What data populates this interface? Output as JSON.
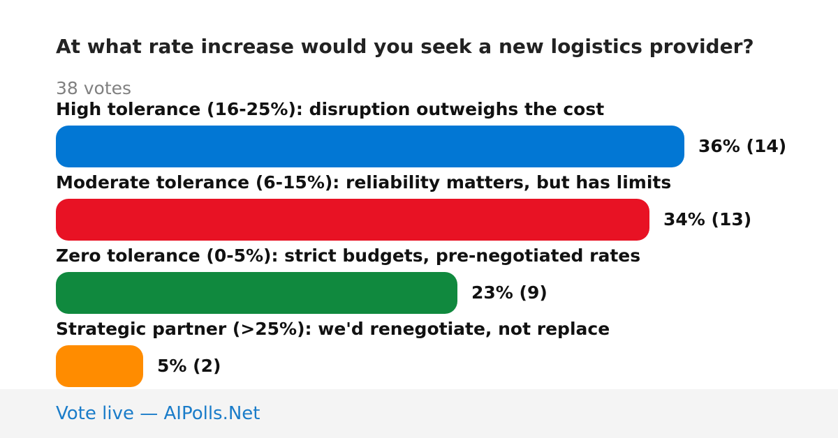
{
  "poll": {
    "question": "At what rate increase would you seek a new logistics provider?",
    "votes_label": "38 votes"
  },
  "chart_data": {
    "type": "bar",
    "orientation": "horizontal",
    "title": "At what rate increase would you seek a new logistics provider?",
    "total_votes": 38,
    "categories": [
      "High tolerance (16-25%): disruption outweighs the cost",
      "Moderate tolerance (6-15%): reliability matters, but has limits",
      "Zero tolerance (0-5%): strict budgets, pre-negotiated rates",
      "Strategic partner (>25%): we'd renegotiate, not replace"
    ],
    "values": [
      36,
      34,
      23,
      5
    ],
    "counts": [
      14,
      13,
      9,
      2
    ],
    "value_labels": [
      "36% (14)",
      "34% (13)",
      "23% (9)",
      "5% (2)"
    ],
    "colors": [
      "#0277d4",
      "#e81224",
      "#10893e",
      "#ff8c00"
    ],
    "grid": false,
    "legend": "none"
  },
  "footer": {
    "link_text": "Vote live — AIPolls.Net"
  }
}
